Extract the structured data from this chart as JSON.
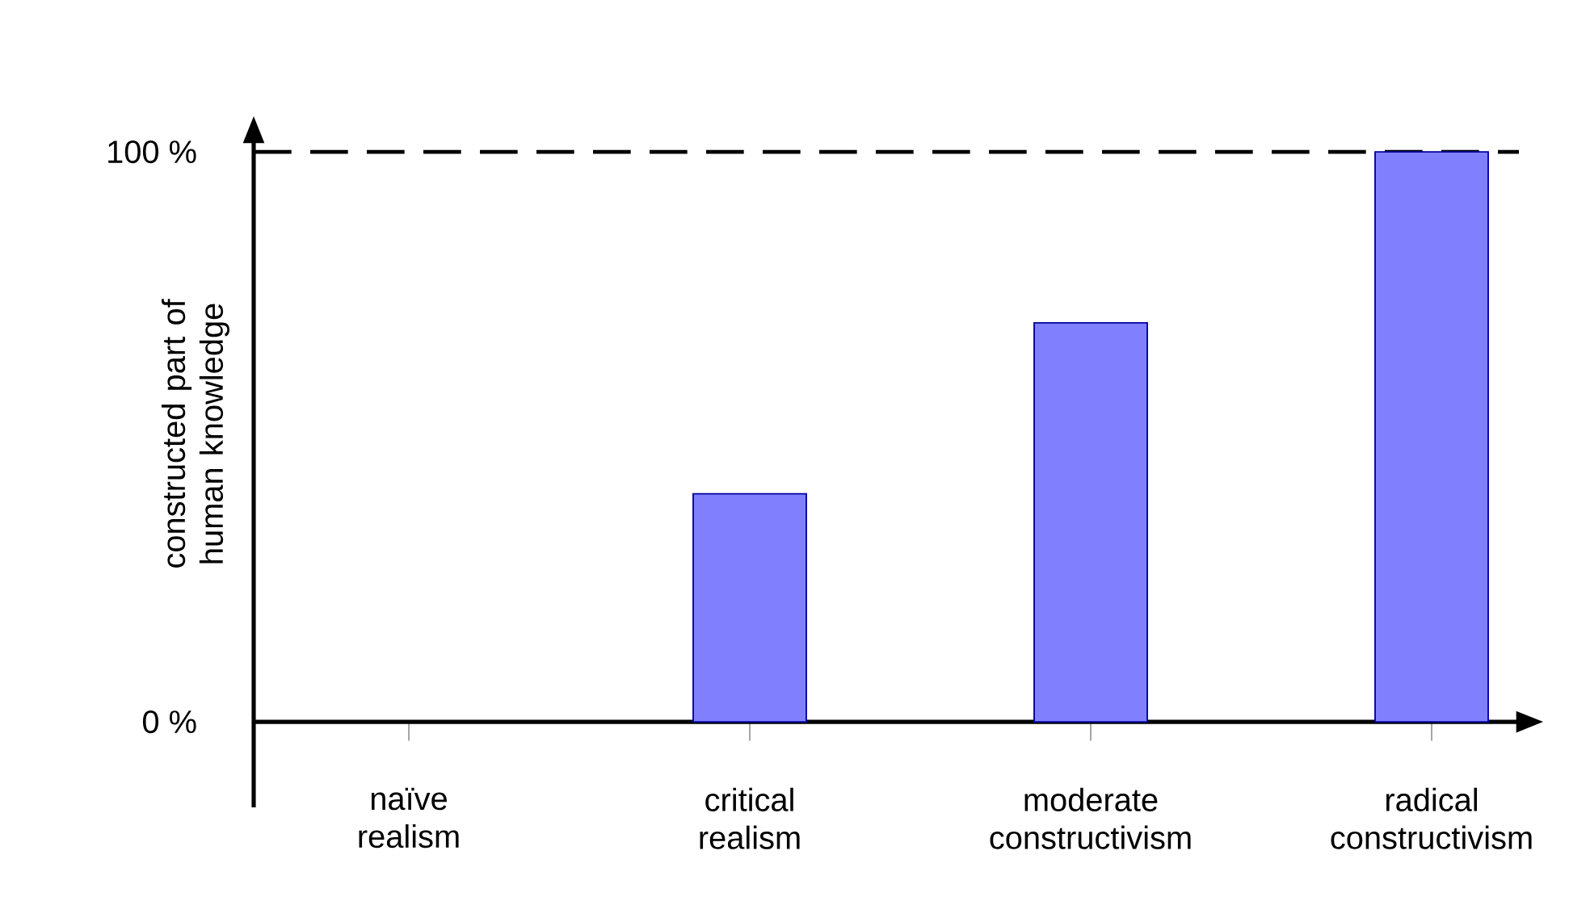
{
  "chart_data": {
    "type": "bar",
    "ylabel": "constructed part of human knowledge",
    "categories": [
      "naïve realism",
      "critical realism",
      "moderate constructivism",
      "radical constructivism"
    ],
    "values": [
      0,
      40,
      70,
      100
    ],
    "color": "#8080ff",
    "ylim": [
      -15,
      102
    ],
    "yticks": [
      {
        "value": 0,
        "label": "0 %"
      },
      {
        "value": 100,
        "label": "100 %"
      }
    ],
    "ref_lines": [
      {
        "axis": "y",
        "value": 100,
        "line_style": "dashed",
        "color": "#000000"
      }
    ]
  }
}
